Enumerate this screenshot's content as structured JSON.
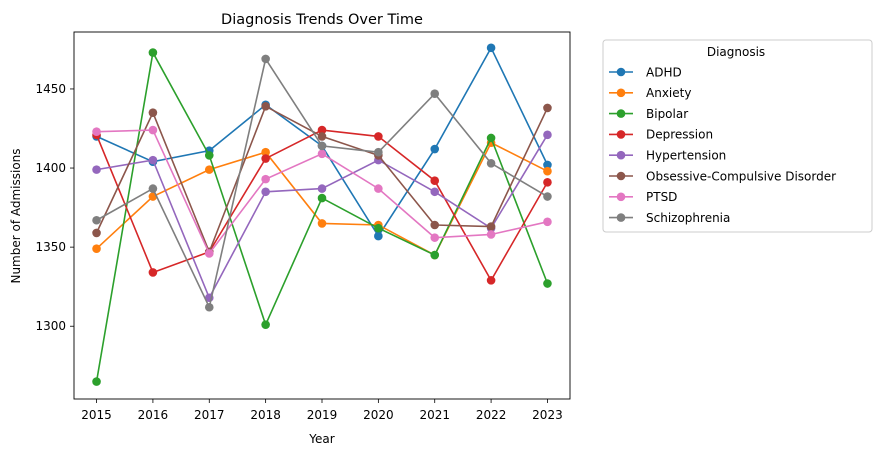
{
  "chart_data": {
    "type": "line",
    "title": "Diagnosis Trends Over Time",
    "xlabel": "Year",
    "ylabel": "Number of Admissions",
    "x": [
      2015,
      2016,
      2017,
      2018,
      2019,
      2020,
      2021,
      2022,
      2023
    ],
    "yticks": [
      1300,
      1350,
      1400,
      1450
    ],
    "ylim": [
      1254,
      1486
    ],
    "xlim": [
      2014.6,
      2023.4
    ],
    "grid": false,
    "legend": {
      "title": "Diagnosis",
      "placement": "outside-right-top"
    },
    "series": [
      {
        "name": "ADHD",
        "color": "#1f77b4",
        "values": [
          1420,
          1404,
          1411,
          1440,
          1414,
          1357,
          1412,
          1476,
          1402
        ]
      },
      {
        "name": "Anxiety",
        "color": "#ff7f0e",
        "values": [
          1349,
          1382,
          1399,
          1410,
          1365,
          1364,
          1345,
          1416,
          1398
        ]
      },
      {
        "name": "Bipolar",
        "color": "#2ca02c",
        "values": [
          1265,
          1473,
          1408,
          1301,
          1381,
          1362,
          1345,
          1419,
          1327
        ]
      },
      {
        "name": "Depression",
        "color": "#d62728",
        "values": [
          1421,
          1334,
          1347,
          1406,
          1424,
          1420,
          1392,
          1329,
          1391
        ]
      },
      {
        "name": "Hypertension",
        "color": "#9467bd",
        "values": [
          1399,
          1405,
          1318,
          1385,
          1387,
          1405,
          1385,
          1362,
          1421
        ]
      },
      {
        "name": "Obsessive-Compulsive Disorder",
        "color": "#8c564b",
        "values": [
          1359,
          1435,
          1347,
          1439,
          1420,
          1408,
          1364,
          1363,
          1438
        ]
      },
      {
        "name": "PTSD",
        "color": "#e377c2",
        "values": [
          1423,
          1424,
          1346,
          1393,
          1409,
          1387,
          1356,
          1358,
          1366
        ]
      },
      {
        "name": "Schizophrenia",
        "color": "#7f7f7f",
        "values": [
          1367,
          1387,
          1312,
          1469,
          1414,
          1410,
          1447,
          1403,
          1382
        ]
      }
    ]
  }
}
